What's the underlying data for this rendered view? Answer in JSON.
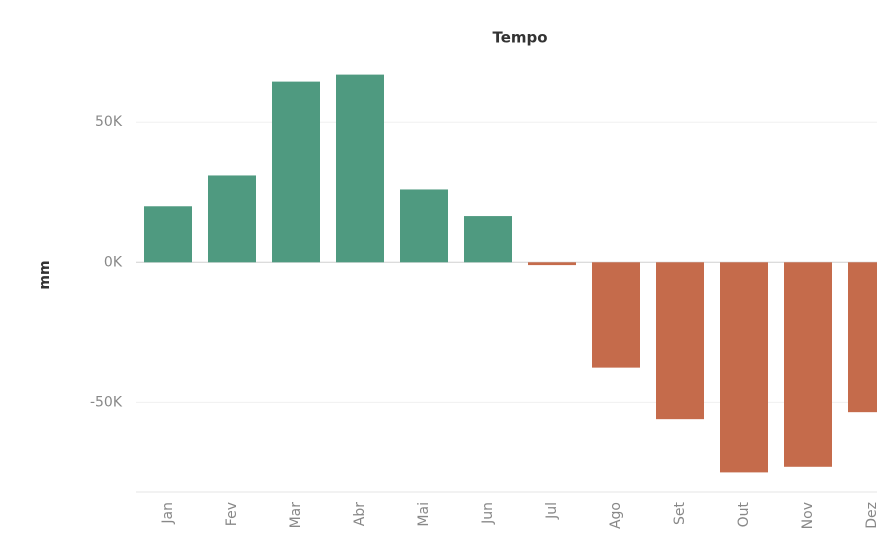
{
  "chart_data": {
    "type": "bar",
    "title": "Tempo",
    "y_label": "mm",
    "categories": [
      "Jan",
      "Fev",
      "Mar",
      "Abr",
      "Mai",
      "Jun",
      "Jul",
      "Ago",
      "Set",
      "Out",
      "Nov",
      "Dez"
    ],
    "values": [
      20000,
      31000,
      64500,
      67000,
      26000,
      16500,
      -1000,
      -37600,
      -56000,
      -75000,
      -73000,
      -53500
    ],
    "positive_color": "#4f9a80",
    "negative_color": "#c56b4b",
    "ylim": [
      -82000,
      74000
    ],
    "yticks": [
      {
        "value": -50000,
        "label": "-50K"
      },
      {
        "value": 0,
        "label": "0K"
      },
      {
        "value": 50000,
        "label": "50K"
      }
    ],
    "grid": true
  }
}
